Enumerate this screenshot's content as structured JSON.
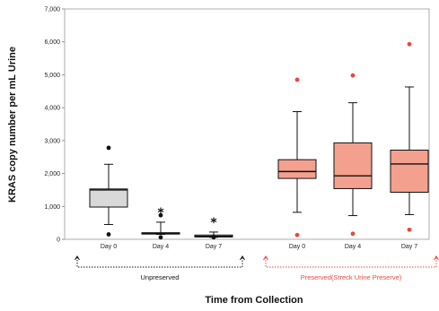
{
  "chart_data": {
    "type": "box",
    "ylabel": "KRAS copy number per mL Urine",
    "xlabel": "Time from Collection",
    "ylim": [
      0,
      7000
    ],
    "yticks": [
      "0",
      "1,000",
      "2,000",
      "3,000",
      "4,000",
      "5,000",
      "6,000",
      "7,000"
    ],
    "categories": [
      "Day 0",
      "Day 4",
      "Day 7",
      "Day 0",
      "Day 4",
      "Day 7"
    ],
    "groups": [
      {
        "label": "Unpreserved",
        "color": "#111111",
        "fill": "#d9d9d9",
        "outlier_color": "#111111",
        "indices": [
          0,
          1,
          2
        ]
      },
      {
        "label": "Preserved(Streck Urine Preserve)",
        "color": "#e8473f",
        "fill": "#f4a08e",
        "outlier_color": "#e8473f",
        "indices": [
          3,
          4,
          5
        ]
      }
    ],
    "boxes": [
      {
        "min": 450,
        "q1": 980,
        "median": 1500,
        "q3": 1530,
        "max": 2280,
        "outliers": [
          2780,
          150
        ],
        "significance": ""
      },
      {
        "min": 150,
        "q1": 160,
        "median": 180,
        "q3": 200,
        "max": 520,
        "outliers": [
          730,
          60
        ],
        "significance": "*"
      },
      {
        "min": 60,
        "q1": 70,
        "median": 90,
        "q3": 130,
        "max": 220,
        "outliers": [
          60
        ],
        "significance": "*"
      },
      {
        "min": 820,
        "q1": 1850,
        "median": 2060,
        "q3": 2420,
        "max": 3880,
        "outliers": [
          4850,
          130
        ],
        "significance": ""
      },
      {
        "min": 720,
        "q1": 1540,
        "median": 1930,
        "q3": 2930,
        "max": 4150,
        "outliers": [
          4980,
          170
        ],
        "significance": ""
      },
      {
        "min": 750,
        "q1": 1430,
        "median": 2290,
        "q3": 2710,
        "max": 4630,
        "outliers": [
          5930,
          290
        ],
        "significance": ""
      }
    ]
  }
}
